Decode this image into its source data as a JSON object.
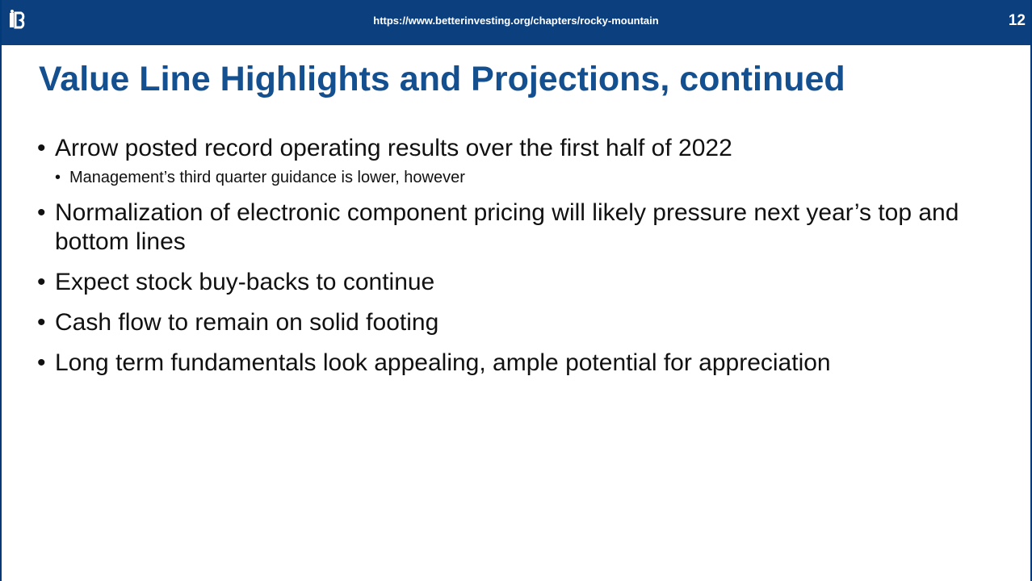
{
  "header": {
    "url": "https://www.betterinvesting.org/chapters/rocky-mountain",
    "page_number": "12"
  },
  "title": "Value Line Highlights and Projections, continued",
  "bullets": [
    {
      "text": "Arrow posted record operating results over the first half of 2022",
      "sub": [
        "Management’s third quarter guidance is lower, however"
      ]
    },
    {
      "text": "Normalization of electronic component pricing will likely pressure next year’s top and bottom lines",
      "sub": []
    },
    {
      "text": "Expect stock buy-backs to continue",
      "sub": []
    },
    {
      "text": "Cash flow to remain on solid footing",
      "sub": []
    },
    {
      "text": "Long term fundamentals look appealing, ample potential for appreciation",
      "sub": []
    }
  ]
}
